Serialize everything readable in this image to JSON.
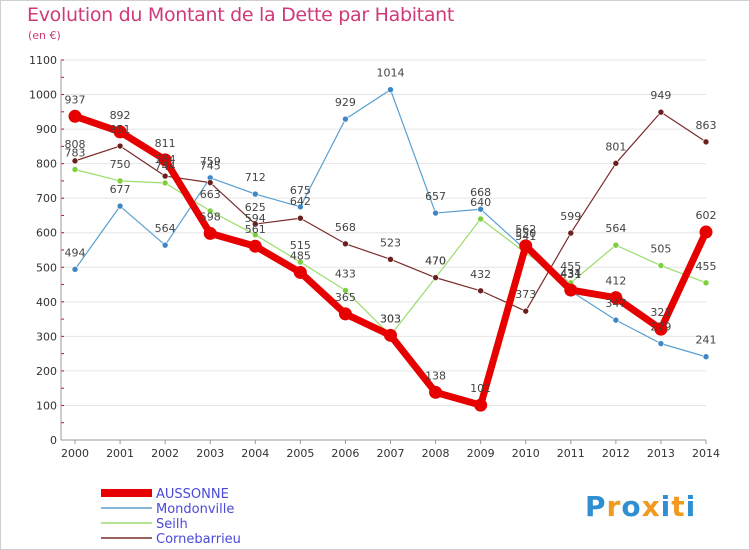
{
  "title": "Evolution du Montant de la Dette par Habitant",
  "unit": "(en €)",
  "logo": {
    "text": "Proxiti",
    "colors": [
      "#2f8fd1",
      "#f29a1f",
      "#2f8fd1",
      "#f29a1f",
      "#2f8fd1",
      "#f29a1f",
      "#2f8fd1"
    ]
  },
  "chart_data": {
    "type": "line",
    "x": [
      "2000",
      "2001",
      "2002",
      "2003",
      "2004",
      "2005",
      "2006",
      "2007",
      "2008",
      "2009",
      "2010",
      "2011",
      "2012",
      "2013",
      "2014"
    ],
    "ylim": [
      0,
      1100
    ],
    "yticks": [
      0,
      100,
      200,
      300,
      400,
      500,
      600,
      700,
      800,
      900,
      1000,
      1100
    ],
    "grid": true,
    "legend": "bottom-left",
    "series": [
      {
        "name": "Mondonville",
        "color": "#5a9fd0",
        "marker": "#3f86c4",
        "width": 1.2,
        "labelOffset": -13,
        "values": [
          494,
          677,
          564,
          759,
          712,
          675,
          929,
          1014,
          657,
          668,
          550,
          431,
          347,
          279,
          241
        ]
      },
      {
        "name": "Seilh",
        "color": "#9bdc6a",
        "marker": "#7ccf3d",
        "width": 1.2,
        "labelOffset": -13,
        "values": [
          783,
          750,
          744,
          663,
          594,
          515,
          433,
          303,
          470,
          640,
          541,
          455,
          564,
          505,
          455
        ]
      },
      {
        "name": "Cornebarrieu",
        "color": "#7a2c2c",
        "marker": "#6b1f1f",
        "width": 1.2,
        "labelOffset": -13,
        "values": [
          808,
          851,
          764,
          745,
          625,
          642,
          568,
          523,
          470,
          432,
          373,
          599,
          801,
          949,
          863
        ]
      },
      {
        "name": "AUSSONNE",
        "color": "#e60000",
        "marker": "#e60000",
        "width": 7,
        "labelOffset": -13,
        "values": [
          937,
          892,
          811,
          598,
          561,
          485,
          365,
          303,
          138,
          101,
          562,
          434,
          412,
          321,
          602
        ]
      }
    ]
  }
}
